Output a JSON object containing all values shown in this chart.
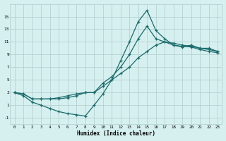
{
  "xlabel": "Humidex (Indice chaleur)",
  "background_color": "#d6efef",
  "grid_color": "#aecccc",
  "line_color": "#1a6b6b",
  "xlim": [
    -0.5,
    23.5
  ],
  "ylim": [
    -2,
    17
  ],
  "xticks": [
    0,
    1,
    2,
    3,
    4,
    5,
    6,
    7,
    8,
    9,
    10,
    11,
    12,
    13,
    14,
    15,
    16,
    17,
    18,
    19,
    20,
    21,
    22,
    23
  ],
  "yticks": [
    -1,
    1,
    3,
    5,
    7,
    9,
    11,
    13,
    15
  ],
  "series1_x": [
    0,
    1,
    2,
    3,
    4,
    5,
    6,
    7,
    8,
    9,
    10,
    11,
    12,
    13,
    14,
    15,
    16,
    17,
    18,
    19,
    20,
    21,
    22,
    23
  ],
  "series1_y": [
    3.0,
    2.5,
    1.5,
    1.0,
    0.5,
    0.0,
    -0.3,
    -0.5,
    -0.7,
    1.0,
    2.8,
    5.0,
    8.0,
    11.0,
    14.2,
    16.0,
    12.8,
    11.5,
    10.5,
    10.2,
    10.5,
    10.0,
    10.0,
    9.5
  ],
  "series2_x": [
    0,
    1,
    2,
    3,
    4,
    5,
    6,
    7,
    8,
    9,
    10,
    11,
    12,
    13,
    14,
    15,
    16,
    17,
    18,
    19,
    20,
    21,
    22,
    23
  ],
  "series2_y": [
    3.0,
    2.8,
    2.0,
    2.0,
    2.0,
    2.0,
    2.2,
    2.5,
    3.0,
    3.0,
    4.0,
    5.0,
    6.0,
    7.0,
    8.5,
    9.5,
    10.5,
    11.0,
    10.8,
    10.5,
    10.3,
    10.0,
    9.8,
    9.5
  ],
  "series3_x": [
    0,
    1,
    2,
    3,
    4,
    5,
    6,
    7,
    8,
    9,
    10,
    11,
    12,
    13,
    14,
    15,
    16,
    17,
    18,
    19,
    20,
    21,
    22,
    23
  ],
  "series3_y": [
    3.0,
    2.8,
    2.0,
    2.0,
    2.0,
    2.2,
    2.5,
    2.8,
    3.0,
    3.0,
    4.5,
    5.5,
    7.0,
    9.0,
    11.5,
    13.5,
    11.5,
    11.0,
    10.5,
    10.3,
    10.2,
    9.8,
    9.5,
    9.3
  ]
}
